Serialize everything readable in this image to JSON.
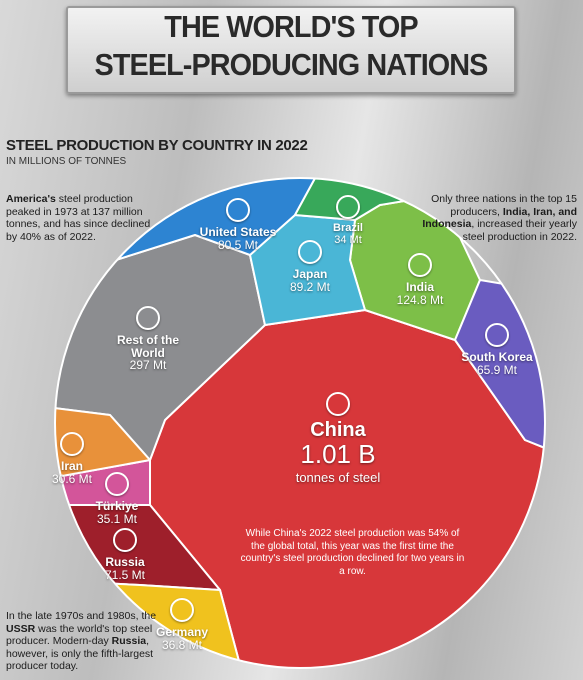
{
  "chart_data": {
    "type": "voronoi",
    "title": [
      "THE WORLD'S TOP",
      "STEEL-PRODUCING NATIONS"
    ],
    "subtitle": "STEEL PRODUCTION BY COUNTRY IN 2022",
    "unit_label": "IN MILLIONS OF TONNES",
    "categories": [
      "China",
      "Rest of the World",
      "India",
      "Japan",
      "United States",
      "Russia",
      "South Korea",
      "Germany",
      "Türkiye",
      "Brazil",
      "Iran"
    ],
    "values": [
      1010,
      297,
      124.8,
      89.2,
      80.5,
      71.5,
      65.9,
      36.8,
      35.1,
      34,
      30.6
    ],
    "value_labels": [
      "1.01 B",
      "297 Mt",
      "124.8 Mt",
      "89.2 Mt",
      "80.5 Mt",
      "71.5 Mt",
      "65.9 Mt",
      "36.8 Mt",
      "35.1 Mt",
      "34 Mt",
      "30.6 Mt"
    ],
    "colors": [
      "#d7373a",
      "#8c8d90",
      "#7dbf48",
      "#4ab6d6",
      "#2d84d2",
      "#9e1f2b",
      "#6a5cc0",
      "#f0c21e",
      "#d3559a",
      "#38a85a",
      "#e8913a"
    ],
    "china_caption": "tonnes of steel",
    "annotations": [
      [
        {
          "text": "America's",
          "bold": true
        },
        {
          "text": " steel production peaked in 1973 at 137 million tonnes, and has since declined by 40% as of 2022.",
          "bold": false
        }
      ],
      [
        {
          "text": "Only three nations in the top 15 producers, ",
          "bold": false
        },
        {
          "text": "India, Iran, and Indonesia",
          "bold": true
        },
        {
          "text": ", increased their yearly steel production in 2022.",
          "bold": false
        }
      ],
      [
        {
          "text": "In the late 1970s and 1980s, the ",
          "bold": false
        },
        {
          "text": "USSR",
          "bold": true
        },
        {
          "text": " was the world's top steel producer. Modern-day ",
          "bold": false
        },
        {
          "text": "Russia",
          "bold": true
        },
        {
          "text": ", however, is only the fifth-largest producer today.",
          "bold": false
        }
      ],
      [
        {
          "text": "While China's 2022 steel production was 54% of the global total, this year was the first time the country's steel production declined for two years in a row.",
          "bold": false
        }
      ]
    ]
  }
}
